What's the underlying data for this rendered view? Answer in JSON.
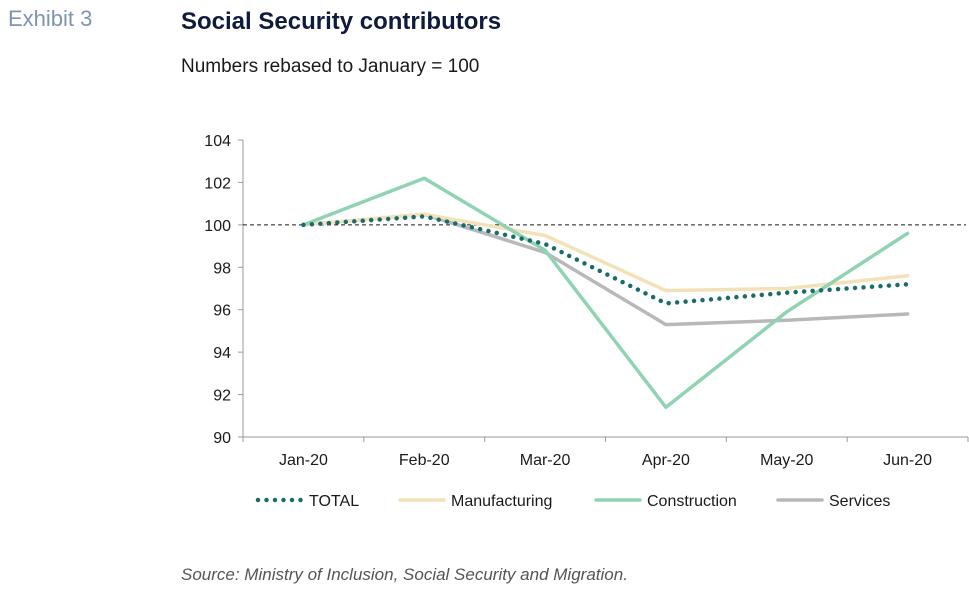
{
  "header": {
    "exhibit": "Exhibit 3",
    "title": "Social Security contributors",
    "subtitle": "Numbers rebased to January = 100"
  },
  "footer": {
    "source": "Source: Ministry of Inclusion, Social Security and Migration."
  },
  "chart_data": {
    "type": "line",
    "title": "Social Security contributors",
    "subtitle": "Numbers rebased to January = 100",
    "categories": [
      "Jan-20",
      "Feb-20",
      "Mar-20",
      "Apr-20",
      "May-20",
      "Jun-20"
    ],
    "ylim": [
      90,
      104
    ],
    "yticks": [
      90,
      92,
      94,
      96,
      98,
      100,
      102,
      104
    ],
    "reference_line": 100,
    "grid": false,
    "legend_position": "bottom",
    "series": [
      {
        "name": "TOTAL",
        "color": "#1a6b6b",
        "style": "dotted",
        "values": [
          100,
          100.4,
          99.1,
          96.3,
          96.8,
          97.2
        ]
      },
      {
        "name": "Manufacturing",
        "color": "#f3e2b8",
        "style": "solid",
        "values": [
          100,
          100.5,
          99.5,
          96.9,
          97.0,
          97.6
        ]
      },
      {
        "name": "Construction",
        "color": "#8fd3b3",
        "style": "solid",
        "values": [
          100,
          102.2,
          98.8,
          91.4,
          95.9,
          99.6
        ]
      },
      {
        "name": "Services",
        "color": "#b8b8bc",
        "style": "solid",
        "values": [
          100,
          100.5,
          98.7,
          95.3,
          95.5,
          95.8
        ]
      }
    ]
  }
}
